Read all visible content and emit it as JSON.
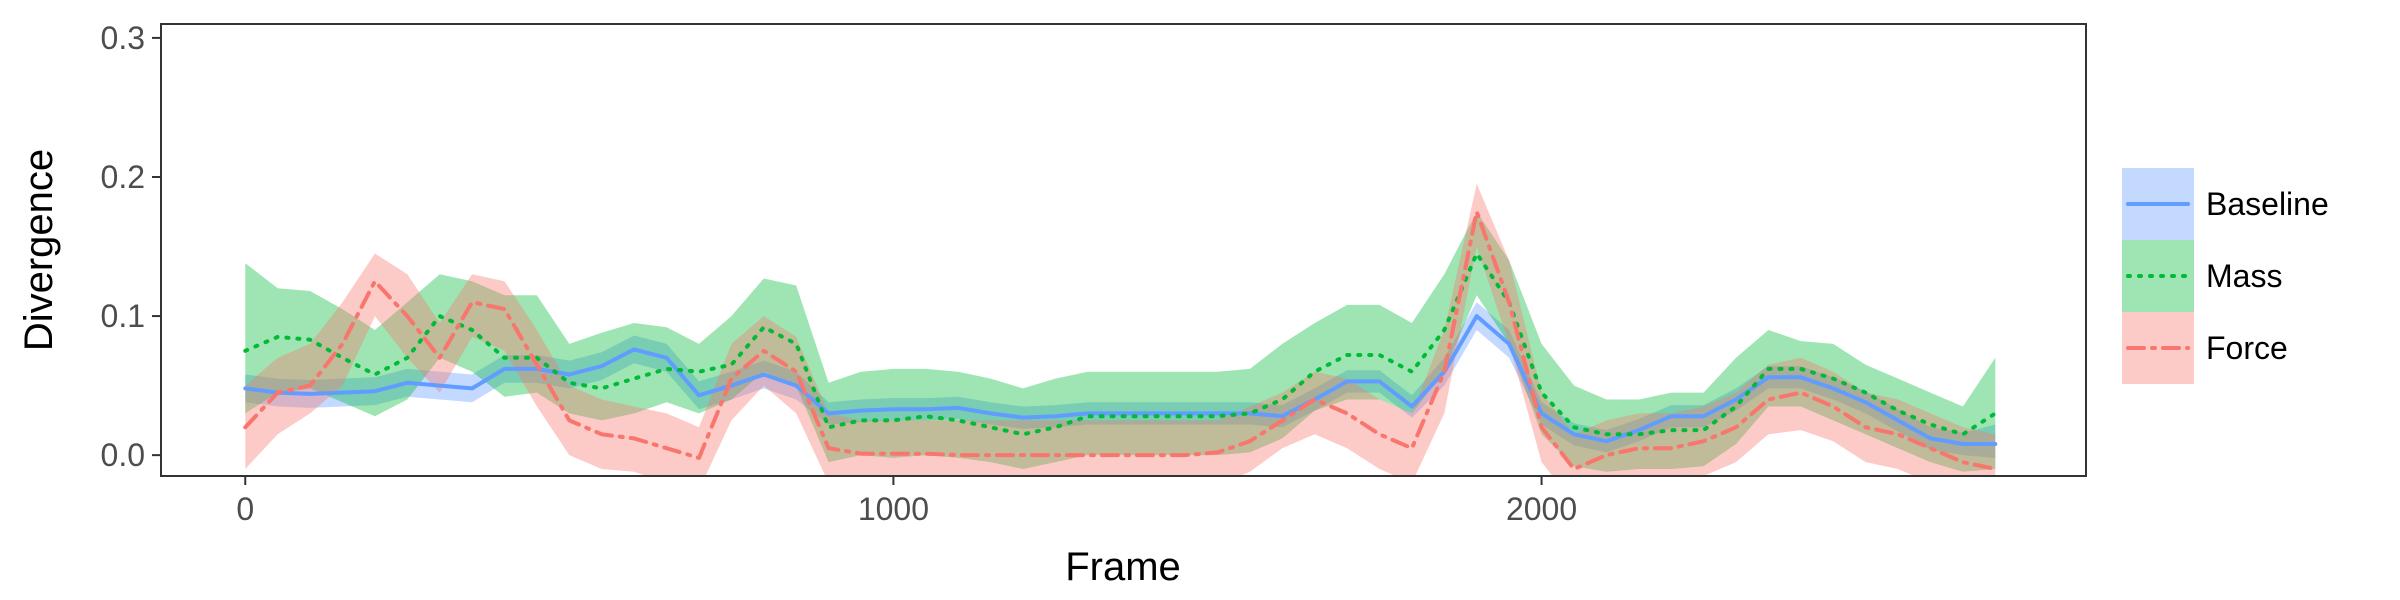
{
  "chart_data": {
    "type": "line",
    "title": "",
    "xlabel": "Frame",
    "ylabel": "Divergence",
    "xlim": [
      -130,
      2840
    ],
    "ylim": [
      -0.015,
      0.31
    ],
    "xticks": [
      0,
      1000,
      2000
    ],
    "xtick_labels": [
      "0",
      "1000",
      "2000"
    ],
    "yticks": [
      0.0,
      0.1,
      0.2,
      0.3
    ],
    "ytick_labels": [
      "0.0",
      "0.1",
      "0.2",
      "0.3"
    ],
    "grid": false,
    "legend_position": "right",
    "x": [
      0,
      50,
      100,
      150,
      200,
      250,
      300,
      350,
      400,
      450,
      500,
      550,
      600,
      650,
      700,
      750,
      800,
      850,
      900,
      950,
      1000,
      1050,
      1100,
      1150,
      1200,
      1250,
      1300,
      1350,
      1400,
      1450,
      1500,
      1550,
      1600,
      1650,
      1700,
      1750,
      1800,
      1850,
      1900,
      1950,
      2000,
      2050,
      2100,
      2150,
      2200,
      2250,
      2300,
      2350,
      2400,
      2450,
      2500,
      2550,
      2600,
      2650,
      2700
    ],
    "series": [
      {
        "name": "Baseline",
        "color": "#619CFF",
        "line_style": "solid",
        "values": [
          0.048,
          0.045,
          0.044,
          0.045,
          0.046,
          0.052,
          0.05,
          0.048,
          0.062,
          0.062,
          0.058,
          0.064,
          0.076,
          0.07,
          0.043,
          0.05,
          0.058,
          0.05,
          0.03,
          0.032,
          0.033,
          0.033,
          0.034,
          0.03,
          0.027,
          0.028,
          0.03,
          0.03,
          0.03,
          0.03,
          0.03,
          0.03,
          0.028,
          0.04,
          0.053,
          0.053,
          0.035,
          0.06,
          0.1,
          0.08,
          0.03,
          0.015,
          0.01,
          0.018,
          0.028,
          0.028,
          0.04,
          0.056,
          0.056,
          0.048,
          0.038,
          0.025,
          0.012,
          0.008,
          0.008
        ],
        "lower": [
          0.038,
          0.035,
          0.034,
          0.035,
          0.036,
          0.042,
          0.04,
          0.038,
          0.052,
          0.052,
          0.048,
          0.054,
          0.066,
          0.06,
          0.033,
          0.04,
          0.048,
          0.04,
          0.022,
          0.024,
          0.025,
          0.025,
          0.026,
          0.022,
          0.019,
          0.02,
          0.022,
          0.022,
          0.022,
          0.022,
          0.022,
          0.022,
          0.02,
          0.032,
          0.045,
          0.045,
          0.027,
          0.05,
          0.09,
          0.07,
          0.022,
          0.007,
          0.002,
          0.01,
          0.02,
          0.02,
          0.032,
          0.048,
          0.048,
          0.04,
          0.03,
          0.017,
          0.004,
          0.0,
          -0.002
        ],
        "upper": [
          0.058,
          0.055,
          0.054,
          0.055,
          0.056,
          0.062,
          0.06,
          0.058,
          0.072,
          0.072,
          0.068,
          0.074,
          0.086,
          0.08,
          0.053,
          0.06,
          0.068,
          0.06,
          0.038,
          0.04,
          0.041,
          0.041,
          0.042,
          0.038,
          0.035,
          0.036,
          0.038,
          0.038,
          0.038,
          0.038,
          0.038,
          0.038,
          0.036,
          0.048,
          0.061,
          0.061,
          0.043,
          0.07,
          0.11,
          0.09,
          0.038,
          0.023,
          0.018,
          0.026,
          0.036,
          0.036,
          0.048,
          0.064,
          0.064,
          0.056,
          0.046,
          0.033,
          0.02,
          0.016,
          0.022
        ]
      },
      {
        "name": "Mass",
        "color": "#00BA38",
        "line_style": "dotted",
        "values": [
          0.075,
          0.085,
          0.083,
          0.07,
          0.058,
          0.07,
          0.1,
          0.09,
          0.07,
          0.07,
          0.052,
          0.048,
          0.055,
          0.062,
          0.06,
          0.065,
          0.092,
          0.08,
          0.02,
          0.025,
          0.025,
          0.028,
          0.025,
          0.02,
          0.015,
          0.02,
          0.028,
          0.028,
          0.028,
          0.028,
          0.028,
          0.03,
          0.04,
          0.06,
          0.072,
          0.072,
          0.06,
          0.09,
          0.145,
          0.11,
          0.045,
          0.02,
          0.015,
          0.015,
          0.018,
          0.018,
          0.035,
          0.062,
          0.062,
          0.055,
          0.045,
          0.032,
          0.022,
          0.015,
          0.03
        ],
        "lower": [
          0.03,
          0.045,
          0.048,
          0.038,
          0.028,
          0.04,
          0.07,
          0.06,
          0.042,
          0.045,
          0.03,
          0.025,
          0.03,
          0.038,
          0.03,
          0.04,
          0.06,
          0.05,
          -0.005,
          0.0,
          -0.002,
          0.0,
          -0.002,
          -0.005,
          -0.01,
          -0.005,
          0.0,
          0.0,
          0.0,
          0.0,
          0.0,
          0.002,
          0.012,
          0.032,
          0.04,
          0.04,
          0.03,
          0.06,
          0.115,
          0.08,
          0.015,
          -0.008,
          -0.012,
          -0.01,
          -0.01,
          -0.008,
          0.008,
          0.035,
          0.035,
          0.025,
          0.015,
          0.005,
          -0.005,
          -0.012,
          -0.01
        ],
        "upper": [
          0.138,
          0.12,
          0.118,
          0.105,
          0.09,
          0.11,
          0.13,
          0.125,
          0.115,
          0.115,
          0.08,
          0.088,
          0.095,
          0.092,
          0.08,
          0.1,
          0.127,
          0.122,
          0.052,
          0.06,
          0.062,
          0.062,
          0.06,
          0.055,
          0.048,
          0.055,
          0.06,
          0.06,
          0.06,
          0.06,
          0.06,
          0.062,
          0.08,
          0.095,
          0.108,
          0.108,
          0.095,
          0.13,
          0.175,
          0.14,
          0.08,
          0.05,
          0.04,
          0.04,
          0.045,
          0.045,
          0.07,
          0.09,
          0.082,
          0.08,
          0.065,
          0.055,
          0.045,
          0.035,
          0.07
        ]
      },
      {
        "name": "Force",
        "color": "#F8766D",
        "line_style": "dashdot",
        "values": [
          0.02,
          0.045,
          0.05,
          0.08,
          0.125,
          0.1,
          0.07,
          0.11,
          0.105,
          0.065,
          0.025,
          0.015,
          0.012,
          0.005,
          -0.002,
          0.055,
          0.075,
          0.06,
          0.005,
          0.001,
          0.001,
          0.001,
          0.0,
          0.0,
          0.0,
          0.0,
          0.0,
          0.0,
          0.0,
          0.0,
          0.002,
          0.01,
          0.025,
          0.04,
          0.03,
          0.015,
          0.005,
          0.06,
          0.175,
          0.11,
          0.02,
          -0.01,
          0.0,
          0.005,
          0.005,
          0.01,
          0.02,
          0.04,
          0.045,
          0.035,
          0.02,
          0.015,
          0.005,
          -0.005,
          -0.01
        ],
        "lower": [
          -0.01,
          0.015,
          0.03,
          0.05,
          0.1,
          0.07,
          0.045,
          0.085,
          0.075,
          0.035,
          0.0,
          -0.01,
          -0.012,
          -0.02,
          -0.025,
          0.025,
          0.05,
          0.03,
          -0.02,
          -0.025,
          -0.025,
          -0.025,
          -0.025,
          -0.025,
          -0.025,
          -0.025,
          -0.025,
          -0.025,
          -0.025,
          -0.025,
          -0.022,
          -0.012,
          0.005,
          0.015,
          0.005,
          -0.01,
          -0.02,
          0.03,
          0.15,
          0.08,
          -0.005,
          -0.035,
          -0.025,
          -0.02,
          -0.02,
          -0.015,
          -0.005,
          0.015,
          0.018,
          0.01,
          -0.005,
          -0.01,
          -0.02,
          -0.03,
          -0.035
        ],
        "upper": [
          0.05,
          0.07,
          0.08,
          0.11,
          0.145,
          0.13,
          0.095,
          0.13,
          0.125,
          0.09,
          0.05,
          0.04,
          0.035,
          0.03,
          0.02,
          0.08,
          0.1,
          0.085,
          0.03,
          0.025,
          0.025,
          0.025,
          0.025,
          0.025,
          0.025,
          0.025,
          0.025,
          0.025,
          0.025,
          0.025,
          0.025,
          0.035,
          0.045,
          0.06,
          0.055,
          0.04,
          0.03,
          0.09,
          0.195,
          0.14,
          0.045,
          0.015,
          0.025,
          0.03,
          0.03,
          0.035,
          0.045,
          0.065,
          0.07,
          0.06,
          0.045,
          0.04,
          0.03,
          0.02,
          0.015
        ]
      }
    ]
  }
}
